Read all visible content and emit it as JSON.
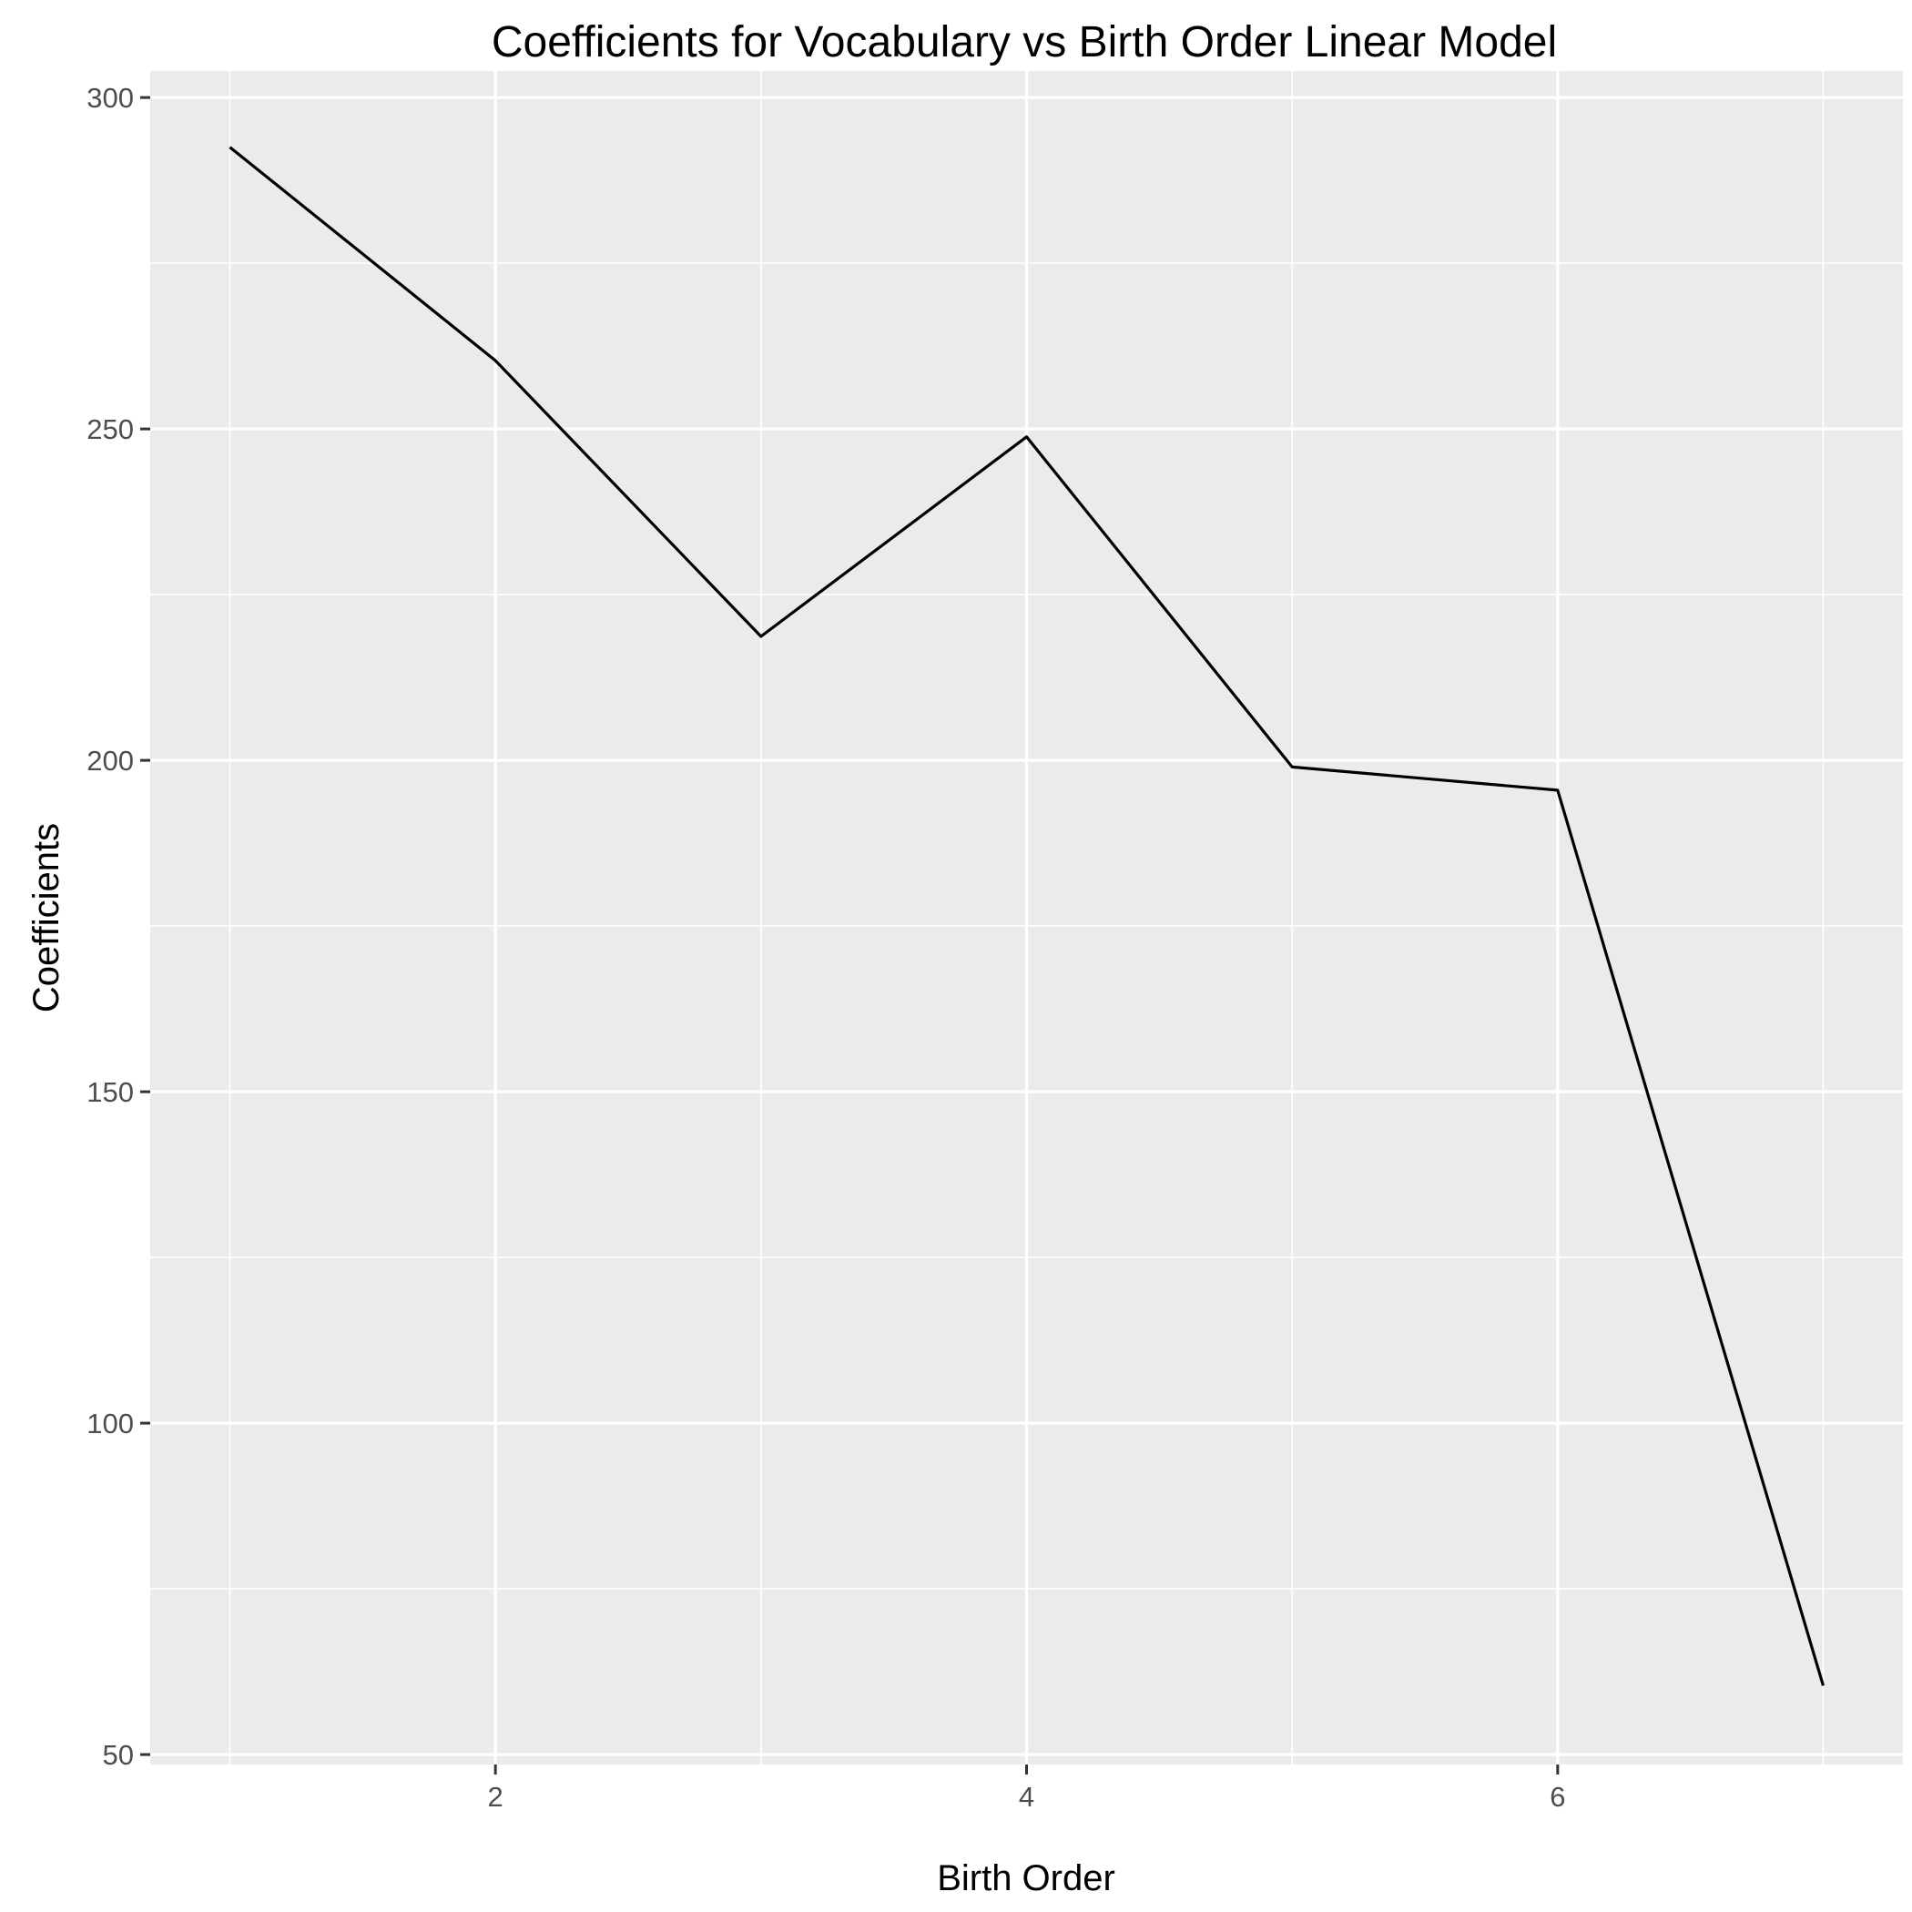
{
  "chart_data": {
    "type": "line",
    "title": "Coefficients for Vocabulary vs Birth Order Linear Model",
    "xlabel": "Birth Order",
    "ylabel": "Coefficients",
    "x": [
      1,
      2,
      3,
      4,
      5,
      6,
      7
    ],
    "series": [
      {
        "values": [
          292.5,
          260.3,
          218.7,
          248.8,
          199.0,
          195.5,
          60.4
        ]
      }
    ],
    "xlim": [
      0.7,
      7.3
    ],
    "ylim": [
      48.5,
      304
    ],
    "x_ticks": [
      2,
      4,
      6
    ],
    "x_tick_labels": [
      "2",
      "4",
      "6"
    ],
    "x_minor_ticks": [
      1,
      3,
      5,
      7
    ],
    "y_ticks": [
      50,
      100,
      150,
      200,
      250,
      300
    ],
    "y_tick_labels": [
      "50",
      "100",
      "150",
      "200",
      "250",
      "300"
    ],
    "y_minor_ticks": [
      75,
      125,
      175,
      225,
      275
    ],
    "grid": true,
    "legend": "none",
    "colors": {
      "panel_background": "#ebebeb",
      "grid": "#ffffff",
      "line": "#000000",
      "tick_text": "#4d4d4d",
      "tick_mark": "#333333"
    }
  }
}
